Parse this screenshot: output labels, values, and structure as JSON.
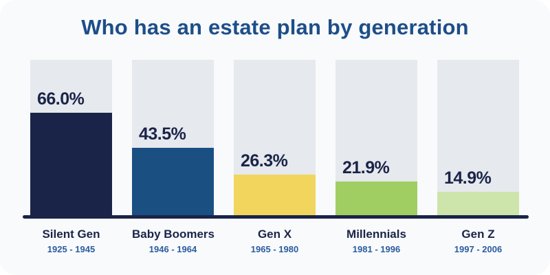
{
  "chart_data": {
    "type": "bar",
    "title": "Who has an estate plan by generation",
    "xlabel": "",
    "ylabel": "",
    "unit": "%",
    "ylim": [
      0,
      100
    ],
    "grid": false,
    "legend": "none",
    "categories": [
      "Silent Gen",
      "Baby Boomers",
      "Gen X",
      "Millennials",
      "Gen Z"
    ],
    "values": [
      66.0,
      43.5,
      26.3,
      21.9,
      14.9
    ],
    "bars": [
      {
        "label": "Silent Gen",
        "years": "1925 - 1945",
        "value": 66.0,
        "value_label": "66.0%",
        "color": "#1a2448"
      },
      {
        "label": "Baby Boomers",
        "years": "1946 - 1964",
        "value": 43.5,
        "value_label": "43.5%",
        "color": "#1a4f82"
      },
      {
        "label": "Gen X",
        "years": "1965 - 1980",
        "value": 26.3,
        "value_label": "26.3%",
        "color": "#f2d55c"
      },
      {
        "label": "Millennials",
        "years": "1981 - 1996",
        "value": 21.9,
        "value_label": "21.9%",
        "color": "#a0ce62"
      },
      {
        "label": "Gen Z",
        "years": "1997 - 2006",
        "value": 14.9,
        "value_label": "14.9%",
        "color": "#cde4aa"
      }
    ]
  },
  "theme": {
    "card_background": "#f8fafc",
    "track_color": "#e6e9ed",
    "axis_line_color": "#1a2448",
    "title_color": "#1d4e89",
    "value_label_color": "#1a2448",
    "category_label_color": "#1a2448",
    "years_label_color": "#2b5c9e"
  }
}
